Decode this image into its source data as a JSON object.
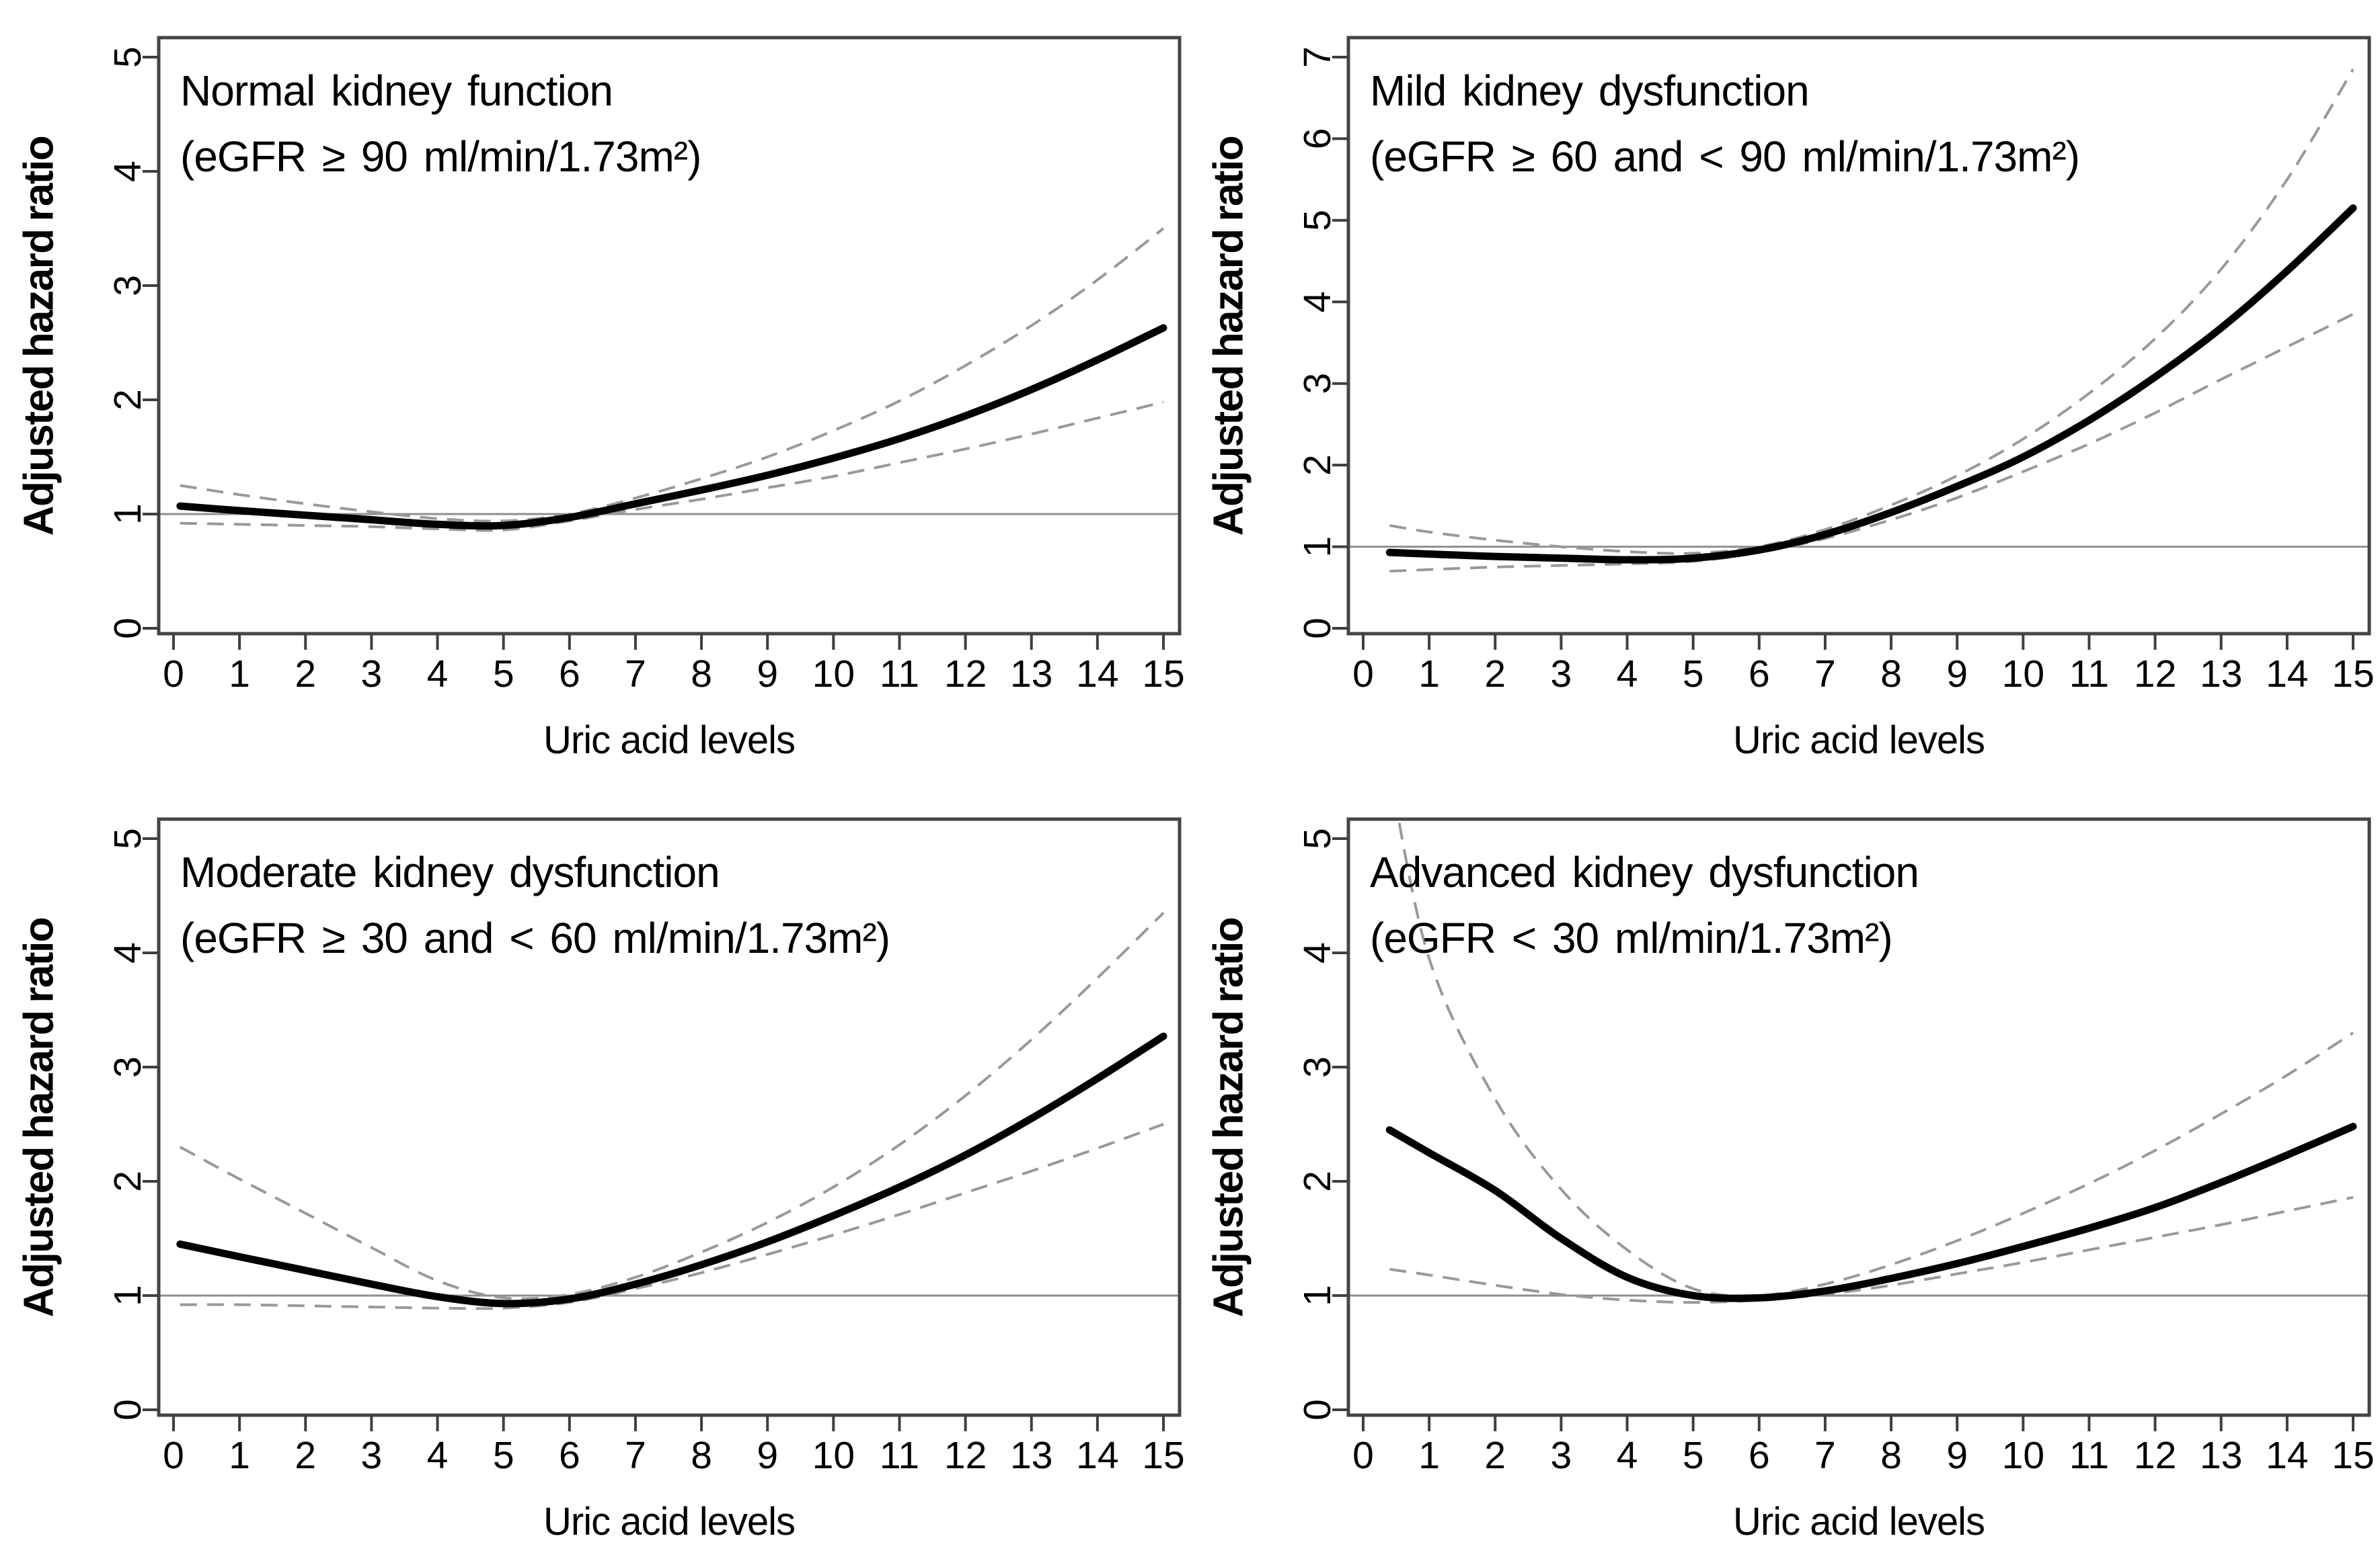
{
  "figure": {
    "description": "Restricted cubic spline plots of adjusted hazard ratio by uric acid levels across four kidney function strata",
    "rows": 2,
    "cols": 2
  },
  "colors": {
    "estimate_curve": "#000000",
    "confidence_band": "#999999",
    "reference_line": "#8f8f8f",
    "plot_border": "#454545",
    "tick": "#3f3f3f",
    "text": "#000000",
    "background": "#ffffff"
  },
  "chart_data": [
    {
      "type": "line",
      "title": "Normal kidney function",
      "subtitle": "(eGFR ≥ 90 ml/min/1.73m²)",
      "xlabel": "Uric acid levels",
      "ylabel": "Adjusted hazard ratio",
      "xlim": [
        0,
        15
      ],
      "ylim": [
        0,
        5
      ],
      "xticks": [
        0,
        1,
        2,
        3,
        4,
        5,
        6,
        7,
        8,
        9,
        10,
        11,
        12,
        13,
        14,
        15
      ],
      "yticks": [
        0,
        1,
        2,
        3,
        4,
        5
      ],
      "grid": false,
      "legend": "none",
      "reference_line_y": 1,
      "x": [
        0.1,
        1,
        2,
        3,
        4,
        5,
        6,
        7,
        8,
        9,
        10,
        11,
        12,
        13,
        14,
        15
      ],
      "series": [
        {
          "name": "adjusted-hazard-ratio",
          "style": "solid",
          "values": [
            1.07,
            1.03,
            0.99,
            0.95,
            0.91,
            0.9,
            0.97,
            1.09,
            1.21,
            1.34,
            1.49,
            1.66,
            1.86,
            2.09,
            2.35,
            2.63
          ]
        },
        {
          "name": "ci-upper",
          "style": "dashed",
          "values": [
            1.25,
            1.17,
            1.09,
            1.02,
            0.96,
            0.94,
            1.0,
            1.14,
            1.31,
            1.5,
            1.73,
            1.99,
            2.3,
            2.65,
            3.05,
            3.5
          ]
        },
        {
          "name": "ci-lower",
          "style": "dashed",
          "values": [
            0.92,
            0.91,
            0.9,
            0.89,
            0.87,
            0.86,
            0.94,
            1.04,
            1.13,
            1.23,
            1.33,
            1.45,
            1.57,
            1.7,
            1.84,
            1.98
          ]
        }
      ]
    },
    {
      "type": "line",
      "title": "Mild kidney dysfunction",
      "subtitle": "(eGFR ≥ 60 and < 90 ml/min/1.73m²)",
      "xlabel": "Uric acid levels",
      "ylabel": "Adjusted hazard ratio",
      "xlim": [
        0,
        15
      ],
      "ylim": [
        0,
        7
      ],
      "xticks": [
        0,
        1,
        2,
        3,
        4,
        5,
        6,
        7,
        8,
        9,
        10,
        11,
        12,
        13,
        14,
        15
      ],
      "yticks": [
        0,
        1,
        2,
        3,
        4,
        5,
        6,
        7
      ],
      "grid": false,
      "legend": "none",
      "reference_line_y": 1,
      "x": [
        0.4,
        1,
        2,
        3,
        4,
        5,
        6,
        7,
        8,
        9,
        10,
        11,
        12,
        13,
        14,
        15
      ],
      "series": [
        {
          "name": "adjusted-hazard-ratio",
          "style": "solid",
          "values": [
            0.93,
            0.91,
            0.88,
            0.86,
            0.84,
            0.86,
            0.96,
            1.15,
            1.42,
            1.74,
            2.1,
            2.55,
            3.08,
            3.68,
            4.38,
            5.15
          ]
        },
        {
          "name": "ci-upper",
          "style": "dashed",
          "values": [
            1.26,
            1.18,
            1.08,
            1.0,
            0.94,
            0.92,
            1.0,
            1.21,
            1.51,
            1.87,
            2.32,
            2.88,
            3.55,
            4.4,
            5.5,
            6.85
          ]
        },
        {
          "name": "ci-lower",
          "style": "dashed",
          "values": [
            0.7,
            0.72,
            0.75,
            0.77,
            0.79,
            0.82,
            0.93,
            1.1,
            1.33,
            1.6,
            1.92,
            2.26,
            2.64,
            3.05,
            3.45,
            3.85
          ]
        }
      ]
    },
    {
      "type": "line",
      "title": "Moderate kidney dysfunction",
      "subtitle": "(eGFR ≥ 30 and < 60 ml/min/1.73m²)",
      "xlabel": "Uric acid levels",
      "ylabel": "Adjusted hazard ratio",
      "xlim": [
        0,
        15
      ],
      "ylim": [
        0,
        5
      ],
      "xticks": [
        0,
        1,
        2,
        3,
        4,
        5,
        6,
        7,
        8,
        9,
        10,
        11,
        12,
        13,
        14,
        15
      ],
      "yticks": [
        0,
        1,
        2,
        3,
        4,
        5
      ],
      "grid": false,
      "legend": "none",
      "reference_line_y": 1,
      "x": [
        0.1,
        1,
        2,
        3,
        4,
        5,
        6,
        7,
        8,
        9,
        10,
        11,
        12,
        13,
        14,
        15
      ],
      "series": [
        {
          "name": "adjusted-hazard-ratio",
          "style": "solid",
          "values": [
            1.45,
            1.34,
            1.22,
            1.1,
            0.99,
            0.93,
            0.97,
            1.1,
            1.27,
            1.47,
            1.7,
            1.95,
            2.23,
            2.55,
            2.9,
            3.27
          ]
        },
        {
          "name": "ci-upper",
          "style": "dashed",
          "values": [
            2.3,
            2.02,
            1.72,
            1.42,
            1.13,
            0.98,
            1.01,
            1.16,
            1.38,
            1.64,
            1.95,
            2.32,
            2.75,
            3.24,
            3.78,
            4.35
          ]
        },
        {
          "name": "ci-lower",
          "style": "dashed",
          "values": [
            0.92,
            0.92,
            0.91,
            0.9,
            0.89,
            0.89,
            0.94,
            1.06,
            1.2,
            1.36,
            1.53,
            1.71,
            1.9,
            2.09,
            2.29,
            2.5
          ]
        }
      ]
    },
    {
      "type": "line",
      "title": "Advanced kidney dysfunction",
      "subtitle": "(eGFR < 30 ml/min/1.73m²)",
      "xlabel": "Uric acid levels",
      "ylabel": "Adjusted hazard ratio",
      "xlim": [
        0,
        15
      ],
      "ylim": [
        0,
        5
      ],
      "xticks": [
        0,
        1,
        2,
        3,
        4,
        5,
        6,
        7,
        8,
        9,
        10,
        11,
        12,
        13,
        14,
        15
      ],
      "yticks": [
        0,
        1,
        2,
        3,
        4,
        5
      ],
      "grid": false,
      "legend": "none",
      "reference_line_y": 1,
      "x": [
        0.4,
        1,
        2,
        3,
        4,
        5,
        6,
        7,
        8,
        9,
        10,
        11,
        12,
        13,
        14,
        15
      ],
      "series": [
        {
          "name": "adjusted-hazard-ratio",
          "style": "solid",
          "values": [
            2.45,
            2.25,
            1.92,
            1.5,
            1.16,
            1.0,
            0.98,
            1.04,
            1.15,
            1.28,
            1.43,
            1.59,
            1.77,
            1.99,
            2.23,
            2.48
          ]
        },
        {
          "name": "ci-upper",
          "style": "dashed",
          "values": [
            5.6,
            3.95,
            2.72,
            1.93,
            1.4,
            1.06,
            1.0,
            1.1,
            1.27,
            1.48,
            1.72,
            1.98,
            2.27,
            2.59,
            2.93,
            3.3
          ]
        },
        {
          "name": "ci-lower",
          "style": "dashed",
          "values": [
            1.23,
            1.18,
            1.09,
            1.01,
            0.96,
            0.94,
            0.96,
            1.01,
            1.09,
            1.19,
            1.29,
            1.4,
            1.51,
            1.62,
            1.74,
            1.86
          ]
        }
      ]
    }
  ]
}
